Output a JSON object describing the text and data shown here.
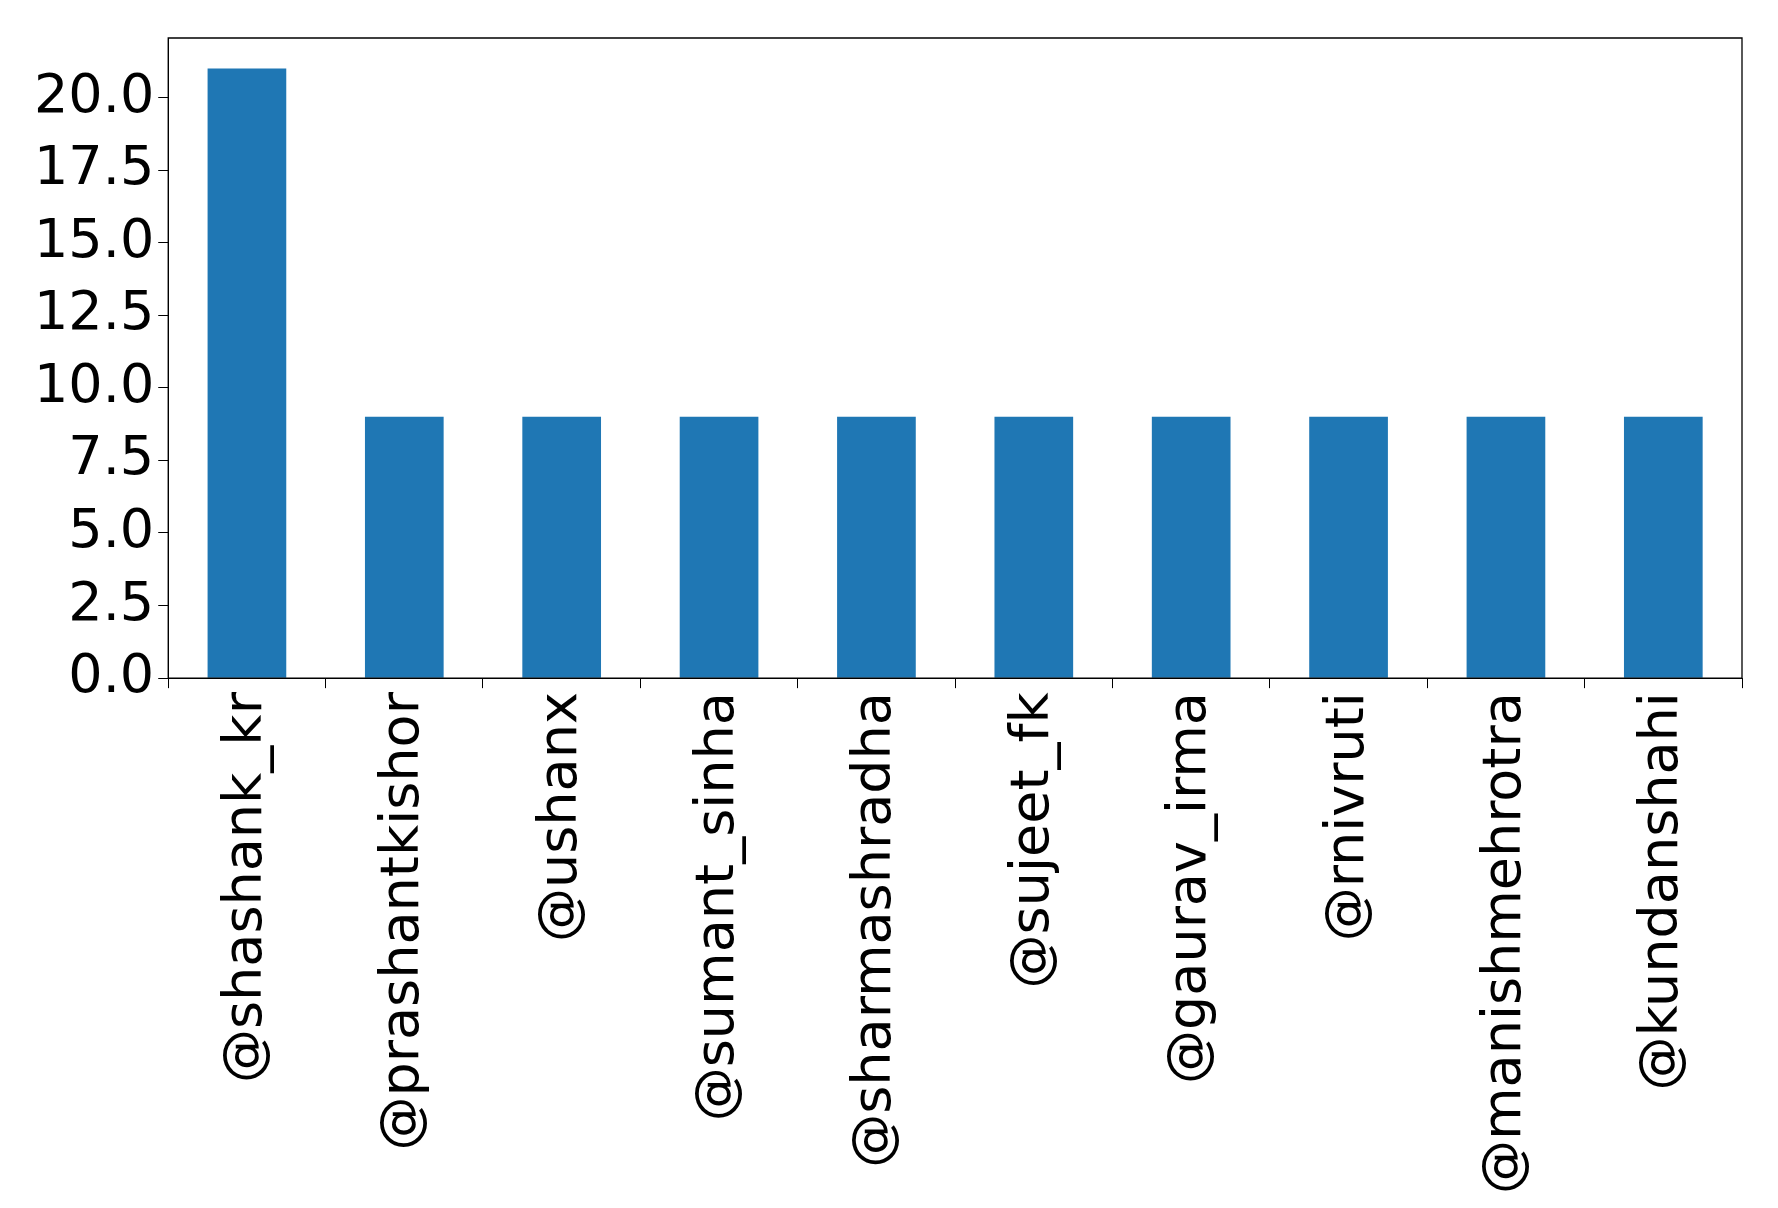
{
  "chart_data": {
    "type": "bar",
    "categories": [
      "@shashank_kr",
      "@prashantkishor",
      "@ushanx",
      "@sumant_sinha",
      "@sharmashradha",
      "@sujeet_fk",
      "@gaurav_irma",
      "@rnivruti",
      "@manishmehrotra",
      "@kundanshahi"
    ],
    "values": [
      21,
      9,
      9,
      9,
      9,
      9,
      9,
      9,
      9,
      9
    ],
    "color": "#1f77b4",
    "ylim": [
      0,
      22.05
    ],
    "yticks": [
      {
        "value": 0,
        "label": "0.0"
      },
      {
        "value": 2.5,
        "label": "2.5"
      },
      {
        "value": 5,
        "label": "5.0"
      },
      {
        "value": 7.5,
        "label": "7.5"
      },
      {
        "value": 10,
        "label": "10.0"
      },
      {
        "value": 12.5,
        "label": "12.5"
      },
      {
        "value": 15,
        "label": "15.0"
      },
      {
        "value": 17.5,
        "label": "17.5"
      },
      {
        "value": 20,
        "label": "20.0"
      }
    ],
    "grid": false,
    "legend": false
  }
}
